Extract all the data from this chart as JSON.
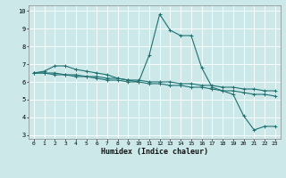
{
  "xlabel": "Humidex (Indice chaleur)",
  "xlim": [
    -0.5,
    23.5
  ],
  "ylim": [
    2.8,
    10.3
  ],
  "yticks": [
    3,
    4,
    5,
    6,
    7,
    8,
    9,
    10
  ],
  "xticks": [
    0,
    1,
    2,
    3,
    4,
    5,
    6,
    7,
    8,
    9,
    10,
    11,
    12,
    13,
    14,
    15,
    16,
    17,
    18,
    19,
    20,
    21,
    22,
    23
  ],
  "bg_color": "#cce8e8",
  "line_color": "#1e7070",
  "grid_color": "#ffffff",
  "series1_x": [
    0,
    1,
    2,
    3,
    4,
    5,
    6,
    7,
    8,
    9,
    10,
    11,
    12,
    13,
    14,
    15,
    16,
    17,
    18,
    19,
    20,
    21,
    22,
    23
  ],
  "series1_y": [
    6.5,
    6.6,
    6.9,
    6.9,
    6.7,
    6.6,
    6.5,
    6.4,
    6.2,
    6.1,
    6.0,
    7.5,
    9.8,
    8.9,
    8.6,
    8.6,
    6.8,
    5.7,
    5.5,
    5.3,
    4.1,
    3.3,
    3.5,
    3.5
  ],
  "series2_x": [
    0,
    1,
    2,
    3,
    4,
    5,
    6,
    7,
    8,
    9,
    10,
    11,
    12,
    13,
    14,
    15,
    16,
    17,
    18,
    19,
    20,
    21,
    22,
    23
  ],
  "series2_y": [
    6.5,
    6.5,
    6.5,
    6.4,
    6.4,
    6.3,
    6.3,
    6.2,
    6.2,
    6.1,
    6.1,
    6.0,
    6.0,
    6.0,
    5.9,
    5.9,
    5.8,
    5.8,
    5.7,
    5.7,
    5.6,
    5.6,
    5.5,
    5.5
  ],
  "series3_x": [
    0,
    1,
    2,
    3,
    4,
    5,
    6,
    7,
    8,
    9,
    10,
    11,
    12,
    13,
    14,
    15,
    16,
    17,
    18,
    19,
    20,
    21,
    22,
    23
  ],
  "series3_y": [
    6.5,
    6.5,
    6.4,
    6.4,
    6.3,
    6.3,
    6.2,
    6.1,
    6.1,
    6.0,
    6.0,
    5.9,
    5.9,
    5.8,
    5.8,
    5.7,
    5.7,
    5.6,
    5.5,
    5.5,
    5.4,
    5.3,
    5.3,
    5.2
  ]
}
